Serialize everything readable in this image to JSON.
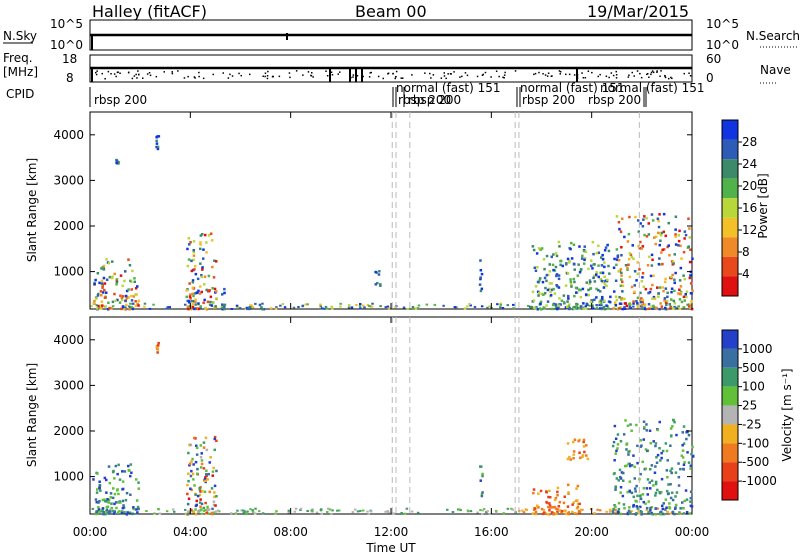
{
  "header": {
    "station": "Halley (fitACF)",
    "beam": "Beam 00",
    "date": "19/Mar/2015"
  },
  "strip_labels": {
    "nsky_label": "N.Sky",
    "nsky_ticks": [
      "10^5",
      "10^0"
    ],
    "nsearch_label": "N.Search",
    "nsearch_ticks": [
      "10^5",
      "10^0"
    ],
    "freq_label": "Freq.",
    "freq_unit": "[MHz]",
    "freq_ticks": [
      "18",
      "8"
    ],
    "nave_label": "Nave",
    "nave_ticks": [
      "60",
      "0"
    ],
    "cpid_label": "CPID"
  },
  "cpid_segments": [
    {
      "label": "rbsp 200",
      "start": 0.0
    },
    {
      "label": "normal (fast) 151",
      "start": 12.2
    },
    {
      "label": "rbsp 200",
      "start": 12.3
    },
    {
      "label": "rbsp 200",
      "start": 12.8
    },
    {
      "label": "normal (fast) 151",
      "start": 17.0
    },
    {
      "label": "rbsp 200",
      "start": 17.2
    },
    {
      "label": "rbsp 200",
      "start": 19.8
    },
    {
      "label": "normal (fast) 151",
      "start": 21.9
    }
  ],
  "time_axis": {
    "title": "Time UT",
    "ticks": [
      "00:00",
      "04:00",
      "08:00",
      "12:00",
      "16:00",
      "20:00",
      "00:00"
    ],
    "range_hours": [
      0,
      24
    ]
  },
  "colorbars": {
    "power": {
      "title": "Power [dB]",
      "ticks": [
        "28",
        "24",
        "20",
        "16",
        "12",
        "8",
        "4"
      ],
      "colors": [
        "#1034e0",
        "#2f5bb8",
        "#3d8a6a",
        "#52b24a",
        "#b8d83a",
        "#f2c12a",
        "#f08a28",
        "#e8491c",
        "#e01010"
      ]
    },
    "velocity": {
      "title": "Velocity [m s⁻¹]",
      "ticks": [
        "1000",
        "500",
        "100",
        "25",
        "-25",
        "-100",
        "-500",
        "-1000"
      ],
      "colors": [
        "#2440c8",
        "#3a70a0",
        "#3c9a6a",
        "#62c038",
        "#b4b4b4",
        "#f0b020",
        "#f07a20",
        "#e84018",
        "#e01010"
      ]
    }
  },
  "chart_data": [
    {
      "type": "heatmap",
      "panel": "power",
      "ylabel": "Slant Range [km]",
      "yticks": [
        1000,
        2000,
        3000,
        4000
      ],
      "ylim": [
        180,
        4500
      ],
      "xlim_hours": [
        0,
        24
      ],
      "clusters": [
        {
          "t": [
            0.05,
            1.9
          ],
          "r": [
            200,
            1300
          ],
          "level": "strong"
        },
        {
          "t": [
            1.0,
            1.1
          ],
          "r": [
            3400,
            3500
          ],
          "level": "weak"
        },
        {
          "t": [
            2.6,
            2.7
          ],
          "r": [
            3700,
            4000
          ],
          "level": "weak"
        },
        {
          "t": [
            3.8,
            5.0
          ],
          "r": [
            200,
            1900
          ],
          "level": "strong"
        },
        {
          "t": [
            5.2,
            5.4
          ],
          "r": [
            200,
            700
          ],
          "level": "weak"
        },
        {
          "t": [
            6.0,
            7.0
          ],
          "r": [
            200,
            300
          ],
          "level": "weak"
        },
        {
          "t": [
            11.3,
            11.6
          ],
          "r": [
            700,
            1100
          ],
          "level": "weak"
        },
        {
          "t": [
            15.5,
            15.6
          ],
          "r": [
            600,
            1300
          ],
          "level": "weak"
        },
        {
          "t": [
            17.6,
            20.7
          ],
          "r": [
            200,
            1700
          ],
          "level": "moderate"
        },
        {
          "t": [
            20.8,
            24.0
          ],
          "r": [
            200,
            2300
          ],
          "level": "strong"
        }
      ]
    },
    {
      "type": "heatmap",
      "panel": "velocity",
      "ylabel": "Slant Range [km]",
      "yticks": [
        1000,
        2000,
        3000,
        4000
      ],
      "ylim": [
        180,
        4500
      ],
      "xlim_hours": [
        0,
        24
      ],
      "clusters": [
        {
          "t": [
            0.05,
            1.9
          ],
          "r": [
            200,
            1300
          ],
          "sign": "positive"
        },
        {
          "t": [
            2.6,
            2.7
          ],
          "r": [
            3700,
            4000
          ],
          "sign": "negative"
        },
        {
          "t": [
            3.8,
            5.0
          ],
          "r": [
            200,
            1900
          ],
          "sign": "mixed"
        },
        {
          "t": [
            15.5,
            15.6
          ],
          "r": [
            600,
            1300
          ],
          "sign": "positive"
        },
        {
          "t": [
            17.6,
            19.5
          ],
          "r": [
            200,
            900
          ],
          "sign": "negative"
        },
        {
          "t": [
            19.0,
            19.8
          ],
          "r": [
            1400,
            1900
          ],
          "sign": "negative"
        },
        {
          "t": [
            20.8,
            24.0
          ],
          "r": [
            200,
            2300
          ],
          "sign": "positive"
        }
      ]
    }
  ]
}
